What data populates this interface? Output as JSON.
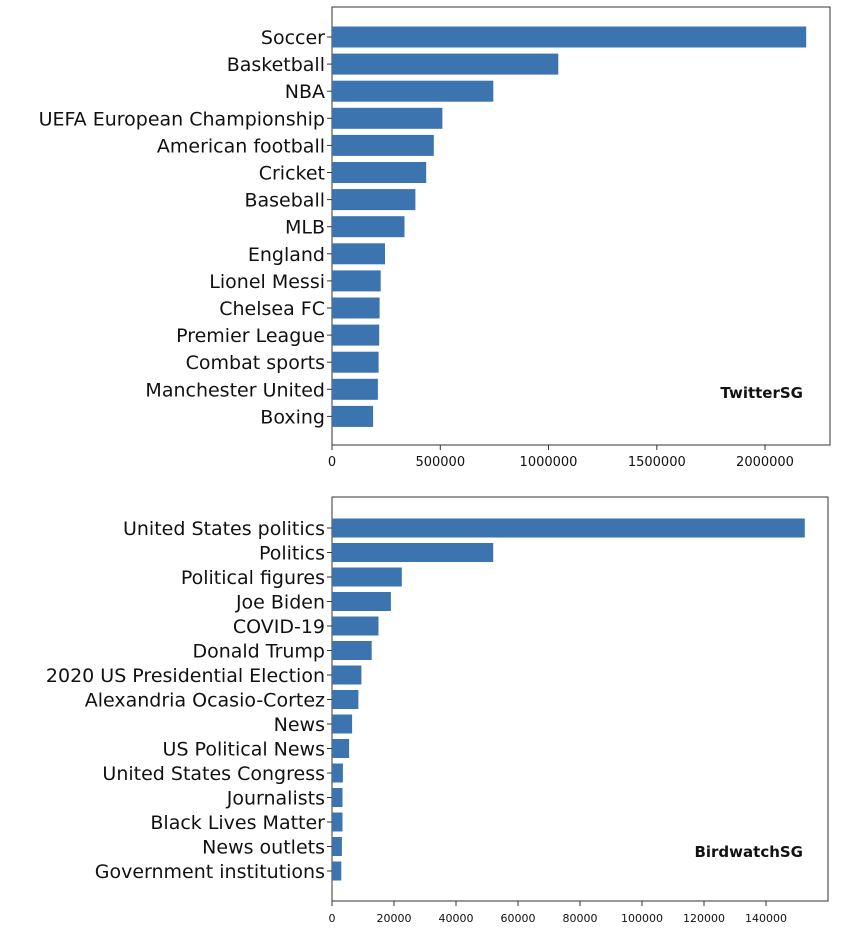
{
  "chart_data": [
    {
      "type": "bar",
      "orientation": "horizontal",
      "annotation": "TwitterSG",
      "categories": [
        "Soccer",
        "Basketball",
        "NBA",
        "UEFA European Championship",
        "American football",
        "Cricket",
        "Baseball",
        "MLB",
        "England",
        "Lionel Messi",
        "Chelsea FC",
        "Premier League",
        "Combat sports",
        "Manchester United",
        "Boxing"
      ],
      "values": [
        2190000,
        1045000,
        745000,
        510000,
        470000,
        435000,
        385000,
        335000,
        245000,
        225000,
        220000,
        218000,
        215000,
        212000,
        190000
      ],
      "xlim": [
        0,
        2300000
      ],
      "xticks": [
        0,
        500000,
        1000000,
        1500000,
        2000000
      ],
      "xtick_labels": [
        "0",
        "500000",
        "1000000",
        "1500000",
        "2000000"
      ],
      "grid": false,
      "annotation_placement": "bottom-right"
    },
    {
      "type": "bar",
      "orientation": "horizontal",
      "annotation": "BirdwatchSG",
      "categories": [
        "United States politics",
        "Politics",
        "Political figures",
        "Joe Biden",
        "COVID-19",
        "Donald Trump",
        "2020 US Presidential Election",
        "Alexandria Ocasio-Cortez",
        "News",
        "US Political News",
        "United States Congress",
        "Journalists",
        "Black Lives Matter",
        "News outlets",
        "Government institutions"
      ],
      "values": [
        152500,
        52000,
        22500,
        19000,
        15000,
        12800,
        9500,
        8500,
        6500,
        5500,
        3500,
        3400,
        3400,
        3200,
        3000
      ],
      "xlim": [
        0,
        160000
      ],
      "xticks": [
        0,
        20000,
        40000,
        60000,
        80000,
        100000,
        120000,
        140000
      ],
      "xtick_labels": [
        "0",
        "20000",
        "40000",
        "60000",
        "80000",
        "100000",
        "120000",
        "140000"
      ],
      "grid": false,
      "annotation_placement": "bottom-right"
    }
  ]
}
